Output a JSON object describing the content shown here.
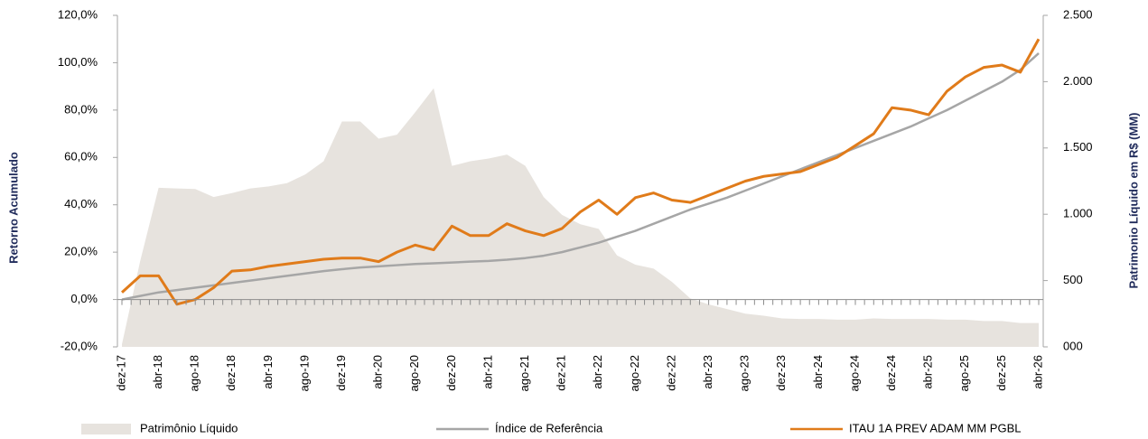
{
  "chart_data": {
    "type": "line",
    "y_label": "Retorno Acumulado",
    "y2_label": "Patrimonio Líquido em R$ (MM)",
    "categories": [
      "dez-17",
      null,
      "abr-18",
      null,
      "ago-18",
      null,
      "dez-18",
      null,
      "abr-19",
      null,
      "ago-19",
      null,
      "dez-19",
      null,
      "abr-20",
      null,
      "ago-20",
      null,
      "dez-20",
      null,
      "abr-21",
      null,
      "ago-21",
      null,
      "dez-21",
      null,
      "abr-22",
      null,
      "ago-22",
      null,
      "dez-22",
      null,
      "abr-23",
      null,
      "ago-23",
      null,
      "dez-23",
      null,
      "abr-24",
      null,
      "ago-24",
      null,
      "dez-24",
      null,
      "abr-25",
      null,
      "ago-25",
      null,
      "dez-25",
      null,
      "abr-26"
    ],
    "series": [
      {
        "name": "Patrimônio Líquido",
        "color": "#e7e3de",
        "kind": "area",
        "axis": "y2",
        "values": [
          20,
          650,
          1200,
          1195,
          1190,
          1130,
          1160,
          1195,
          1210,
          1235,
          1300,
          1400,
          1700,
          1700,
          1570,
          1600,
          1770,
          1950,
          1365,
          1400,
          1420,
          1450,
          1365,
          1130,
          995,
          925,
          890,
          690,
          620,
          590,
          490,
          365,
          320,
          285,
          250,
          235,
          215,
          210,
          210,
          205,
          205,
          215,
          210,
          210,
          210,
          205,
          205,
          195,
          195,
          180,
          180
        ]
      },
      {
        "name": "Índice de Referência",
        "color": "#a6a6a6",
        "kind": "line",
        "values": [
          0,
          1.5,
          3,
          4,
          5,
          6,
          7,
          8,
          9,
          10,
          11,
          12,
          12.8,
          13.5,
          14,
          14.5,
          15,
          15.3,
          15.6,
          16,
          16.3,
          16.8,
          17.5,
          18.5,
          20,
          22,
          24,
          26.5,
          29,
          32,
          35,
          38,
          40.5,
          43,
          46,
          49,
          52,
          55,
          58,
          61,
          64,
          67,
          70,
          73,
          76.5,
          80,
          84,
          88,
          92,
          97,
          104
        ]
      },
      {
        "name": "ITAU 1A PREV ADAM MM PGBL",
        "color": "#e07b1a",
        "kind": "line",
        "values": [
          3,
          10,
          10,
          -2,
          0,
          5,
          12,
          12.5,
          14,
          15,
          16,
          17,
          17.5,
          17.5,
          16,
          20,
          23,
          21,
          31,
          27,
          27,
          32,
          29,
          27,
          30,
          37,
          42,
          36,
          43,
          45,
          42,
          41,
          44,
          47,
          50,
          52,
          53,
          54,
          57,
          60,
          65,
          70,
          81,
          80,
          78,
          88,
          94,
          98,
          99,
          96,
          110
        ]
      }
    ],
    "ylim": [
      -20,
      120
    ],
    "yticks": [
      {
        "value": -20,
        "label": "-20,0%"
      },
      {
        "value": 0,
        "label": "0,0%"
      },
      {
        "value": 20,
        "label": "20,0%"
      },
      {
        "value": 40,
        "label": "40,0%"
      },
      {
        "value": 60,
        "label": "60,0%"
      },
      {
        "value": 80,
        "label": "80,0%"
      },
      {
        "value": 100,
        "label": "100,0%"
      },
      {
        "value": 120,
        "label": "120,0%"
      }
    ],
    "y2lim": [
      0,
      2500
    ],
    "y2ticks": [
      {
        "value": 0,
        "label": "000"
      },
      500,
      {
        "value": 1000,
        "label": "1.000"
      },
      {
        "value": 1500,
        "label": "1.500"
      },
      {
        "value": 2000,
        "label": "2.000"
      },
      {
        "value": 2500,
        "label": "2.500"
      }
    ],
    "grid": false,
    "legend": "bottom"
  }
}
